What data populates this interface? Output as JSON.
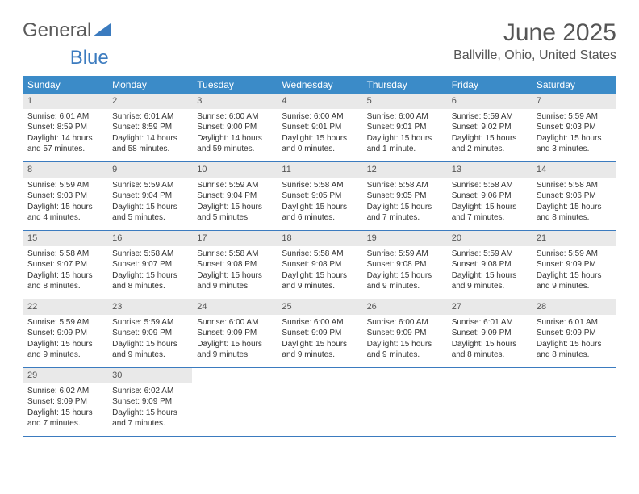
{
  "brand": {
    "part1": "General",
    "part2": "Blue"
  },
  "title": "June 2025",
  "location": "Ballville, Ohio, United States",
  "colors": {
    "header_bg": "#3b8bc8",
    "daynum_bg": "#e9e9e9",
    "rule": "#3b7bbf",
    "text": "#333333",
    "title_text": "#555555"
  },
  "weekdays": [
    "Sunday",
    "Monday",
    "Tuesday",
    "Wednesday",
    "Thursday",
    "Friday",
    "Saturday"
  ],
  "days": [
    {
      "n": "1",
      "sunrise": "Sunrise: 6:01 AM",
      "sunset": "Sunset: 8:59 PM",
      "daylight": "Daylight: 14 hours and 57 minutes."
    },
    {
      "n": "2",
      "sunrise": "Sunrise: 6:01 AM",
      "sunset": "Sunset: 8:59 PM",
      "daylight": "Daylight: 14 hours and 58 minutes."
    },
    {
      "n": "3",
      "sunrise": "Sunrise: 6:00 AM",
      "sunset": "Sunset: 9:00 PM",
      "daylight": "Daylight: 14 hours and 59 minutes."
    },
    {
      "n": "4",
      "sunrise": "Sunrise: 6:00 AM",
      "sunset": "Sunset: 9:01 PM",
      "daylight": "Daylight: 15 hours and 0 minutes."
    },
    {
      "n": "5",
      "sunrise": "Sunrise: 6:00 AM",
      "sunset": "Sunset: 9:01 PM",
      "daylight": "Daylight: 15 hours and 1 minute."
    },
    {
      "n": "6",
      "sunrise": "Sunrise: 5:59 AM",
      "sunset": "Sunset: 9:02 PM",
      "daylight": "Daylight: 15 hours and 2 minutes."
    },
    {
      "n": "7",
      "sunrise": "Sunrise: 5:59 AM",
      "sunset": "Sunset: 9:03 PM",
      "daylight": "Daylight: 15 hours and 3 minutes."
    },
    {
      "n": "8",
      "sunrise": "Sunrise: 5:59 AM",
      "sunset": "Sunset: 9:03 PM",
      "daylight": "Daylight: 15 hours and 4 minutes."
    },
    {
      "n": "9",
      "sunrise": "Sunrise: 5:59 AM",
      "sunset": "Sunset: 9:04 PM",
      "daylight": "Daylight: 15 hours and 5 minutes."
    },
    {
      "n": "10",
      "sunrise": "Sunrise: 5:59 AM",
      "sunset": "Sunset: 9:04 PM",
      "daylight": "Daylight: 15 hours and 5 minutes."
    },
    {
      "n": "11",
      "sunrise": "Sunrise: 5:58 AM",
      "sunset": "Sunset: 9:05 PM",
      "daylight": "Daylight: 15 hours and 6 minutes."
    },
    {
      "n": "12",
      "sunrise": "Sunrise: 5:58 AM",
      "sunset": "Sunset: 9:05 PM",
      "daylight": "Daylight: 15 hours and 7 minutes."
    },
    {
      "n": "13",
      "sunrise": "Sunrise: 5:58 AM",
      "sunset": "Sunset: 9:06 PM",
      "daylight": "Daylight: 15 hours and 7 minutes."
    },
    {
      "n": "14",
      "sunrise": "Sunrise: 5:58 AM",
      "sunset": "Sunset: 9:06 PM",
      "daylight": "Daylight: 15 hours and 8 minutes."
    },
    {
      "n": "15",
      "sunrise": "Sunrise: 5:58 AM",
      "sunset": "Sunset: 9:07 PM",
      "daylight": "Daylight: 15 hours and 8 minutes."
    },
    {
      "n": "16",
      "sunrise": "Sunrise: 5:58 AM",
      "sunset": "Sunset: 9:07 PM",
      "daylight": "Daylight: 15 hours and 8 minutes."
    },
    {
      "n": "17",
      "sunrise": "Sunrise: 5:58 AM",
      "sunset": "Sunset: 9:08 PM",
      "daylight": "Daylight: 15 hours and 9 minutes."
    },
    {
      "n": "18",
      "sunrise": "Sunrise: 5:58 AM",
      "sunset": "Sunset: 9:08 PM",
      "daylight": "Daylight: 15 hours and 9 minutes."
    },
    {
      "n": "19",
      "sunrise": "Sunrise: 5:59 AM",
      "sunset": "Sunset: 9:08 PM",
      "daylight": "Daylight: 15 hours and 9 minutes."
    },
    {
      "n": "20",
      "sunrise": "Sunrise: 5:59 AM",
      "sunset": "Sunset: 9:08 PM",
      "daylight": "Daylight: 15 hours and 9 minutes."
    },
    {
      "n": "21",
      "sunrise": "Sunrise: 5:59 AM",
      "sunset": "Sunset: 9:09 PM",
      "daylight": "Daylight: 15 hours and 9 minutes."
    },
    {
      "n": "22",
      "sunrise": "Sunrise: 5:59 AM",
      "sunset": "Sunset: 9:09 PM",
      "daylight": "Daylight: 15 hours and 9 minutes."
    },
    {
      "n": "23",
      "sunrise": "Sunrise: 5:59 AM",
      "sunset": "Sunset: 9:09 PM",
      "daylight": "Daylight: 15 hours and 9 minutes."
    },
    {
      "n": "24",
      "sunrise": "Sunrise: 6:00 AM",
      "sunset": "Sunset: 9:09 PM",
      "daylight": "Daylight: 15 hours and 9 minutes."
    },
    {
      "n": "25",
      "sunrise": "Sunrise: 6:00 AM",
      "sunset": "Sunset: 9:09 PM",
      "daylight": "Daylight: 15 hours and 9 minutes."
    },
    {
      "n": "26",
      "sunrise": "Sunrise: 6:00 AM",
      "sunset": "Sunset: 9:09 PM",
      "daylight": "Daylight: 15 hours and 9 minutes."
    },
    {
      "n": "27",
      "sunrise": "Sunrise: 6:01 AM",
      "sunset": "Sunset: 9:09 PM",
      "daylight": "Daylight: 15 hours and 8 minutes."
    },
    {
      "n": "28",
      "sunrise": "Sunrise: 6:01 AM",
      "sunset": "Sunset: 9:09 PM",
      "daylight": "Daylight: 15 hours and 8 minutes."
    },
    {
      "n": "29",
      "sunrise": "Sunrise: 6:02 AM",
      "sunset": "Sunset: 9:09 PM",
      "daylight": "Daylight: 15 hours and 7 minutes."
    },
    {
      "n": "30",
      "sunrise": "Sunrise: 6:02 AM",
      "sunset": "Sunset: 9:09 PM",
      "daylight": "Daylight: 15 hours and 7 minutes."
    }
  ]
}
